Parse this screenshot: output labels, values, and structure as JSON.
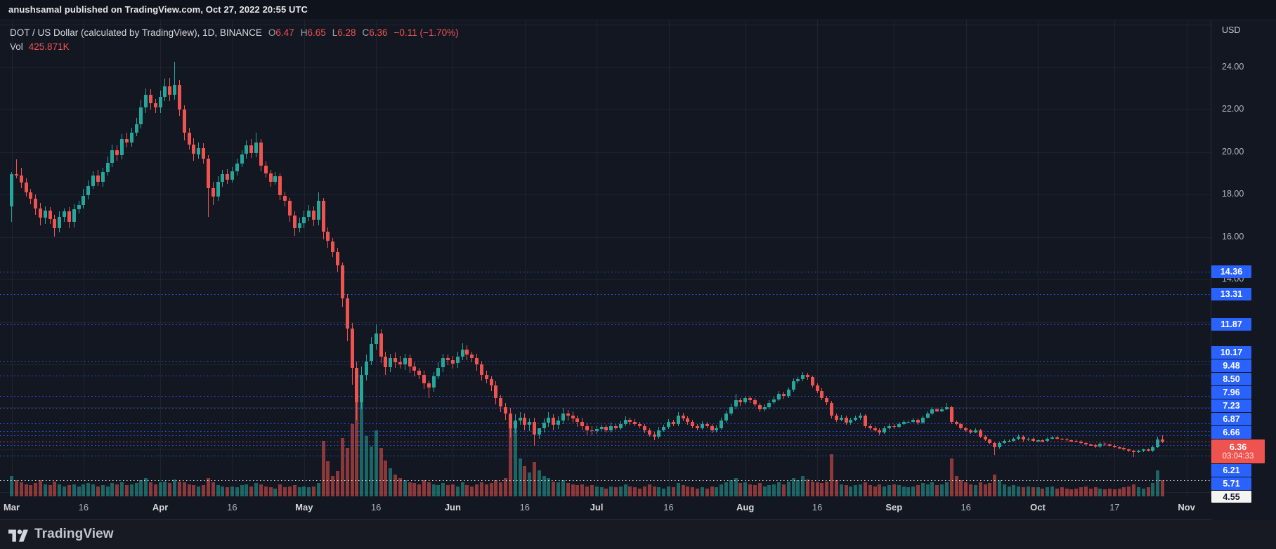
{
  "attribution": {
    "text": "anushsamal published on TradingView.com, Oct 27, 2022 20:55 UTC"
  },
  "legend": {
    "title": "DOT / US Dollar (calculated by TradingView), 1D, BINANCE",
    "ohlc": [
      {
        "label": "O",
        "value": "6.47"
      },
      {
        "label": "H",
        "value": "6.65"
      },
      {
        "label": "L",
        "value": "6.28"
      },
      {
        "label": "C",
        "value": "6.36"
      }
    ],
    "change": "−0.11 (−1.70%)",
    "vol_label": "Vol",
    "vol_value": "425.871K"
  },
  "price_axis": {
    "currency": "USD",
    "ticks": [
      {
        "price": 24,
        "label": "24.00"
      },
      {
        "price": 22,
        "label": "22.00"
      },
      {
        "price": 20,
        "label": "20.00"
      },
      {
        "price": 18,
        "label": "18.00"
      },
      {
        "price": 16,
        "label": "16.00"
      },
      {
        "price": 14,
        "label": "14.00"
      }
    ]
  },
  "footer": {
    "brand": "TradingView"
  },
  "colors": {
    "background": "#131722",
    "up": "#26a69a",
    "down": "#ef5350",
    "up_vol": "rgba(38,166,154,0.55)",
    "down_vol": "rgba(239,83,80,0.55)",
    "grid": "rgba(255,255,255,0.055)",
    "alert_line": "#2962ff",
    "last_price_line": "#ef5350",
    "eta_line": "#e8e8e8",
    "axis_text": "#b2b5be"
  },
  "chart_data": {
    "type": "candlestick",
    "symbol": "DOT / US Dollar",
    "exchange": "BINANCE",
    "interval": "1D",
    "start_date": "2022-03-01",
    "end_date": "2022-10-27",
    "price_range_visible": [
      4.0,
      26.0
    ],
    "last_close": 6.36,
    "open_first": 17.45,
    "closes": [
      18.95,
      18.9,
      18.55,
      18.1,
      17.8,
      17.35,
      16.9,
      17.25,
      16.85,
      16.4,
      16.95,
      17.2,
      16.7,
      17.3,
      17.5,
      17.95,
      18.4,
      18.9,
      18.6,
      19.05,
      19.5,
      20.1,
      19.85,
      20.6,
      20.45,
      20.9,
      21.3,
      22.1,
      22.7,
      22.3,
      22.1,
      22.6,
      23.1,
      22.7,
      23.15,
      22.0,
      20.9,
      20.35,
      19.9,
      20.2,
      19.7,
      18.3,
      17.9,
      18.6,
      18.95,
      18.7,
      19.1,
      19.45,
      19.9,
      20.3,
      19.95,
      20.45,
      19.35,
      19.0,
      18.6,
      18.85,
      17.95,
      17.7,
      17.0,
      16.4,
      16.65,
      16.95,
      17.25,
      16.8,
      17.7,
      16.25,
      15.8,
      15.3,
      14.65,
      13.1,
      11.7,
      9.85,
      8.2,
      9.5,
      10.15,
      10.95,
      11.45,
      10.35,
      9.85,
      10.3,
      10.1,
      10.0,
      10.3,
      9.9,
      9.7,
      9.5,
      9.1,
      8.9,
      9.45,
      9.85,
      10.3,
      10.2,
      10.05,
      10.35,
      10.7,
      10.45,
      10.3,
      10.0,
      9.5,
      9.3,
      9.0,
      8.4,
      8.0,
      7.7,
      7.0,
      7.35,
      7.5,
      7.15,
      7.3,
      6.7,
      7.0,
      7.25,
      7.5,
      7.15,
      7.35,
      7.7,
      7.6,
      7.45,
      7.3,
      7.1,
      6.9,
      6.85,
      6.95,
      7.05,
      6.9,
      7.1,
      7.0,
      7.2,
      7.4,
      7.3,
      7.2,
      7.1,
      6.9,
      6.7,
      6.6,
      6.9,
      7.05,
      7.3,
      7.2,
      7.6,
      7.45,
      7.3,
      7.1,
      7.0,
      7.2,
      7.1,
      6.9,
      7.0,
      7.35,
      7.7,
      8.0,
      8.3,
      8.2,
      8.4,
      8.3,
      8.1,
      7.9,
      8.0,
      8.2,
      8.35,
      8.6,
      8.5,
      8.8,
      9.2,
      9.3,
      9.5,
      9.4,
      9.0,
      8.75,
      8.4,
      8.2,
      7.6,
      7.4,
      7.5,
      7.25,
      7.4,
      7.5,
      7.6,
      7.1,
      7.0,
      6.9,
      6.8,
      7.0,
      7.1,
      7.05,
      7.2,
      7.3,
      7.3,
      7.4,
      7.25,
      7.5,
      7.7,
      7.9,
      7.8,
      7.9,
      8.0,
      7.3,
      7.2,
      7.0,
      6.9,
      6.8,
      6.9,
      6.6,
      6.45,
      6.3,
      6.1,
      6.3,
      6.4,
      6.4,
      6.5,
      6.6,
      6.45,
      6.5,
      6.4,
      6.42,
      6.4,
      6.5,
      6.58,
      6.5,
      6.48,
      6.42,
      6.4,
      6.38,
      6.3,
      6.22,
      6.2,
      6.12,
      6.28,
      6.22,
      6.18,
      6.1,
      6.08,
      6.0,
      5.92,
      5.88,
      5.92,
      6.0,
      5.95,
      6.1,
      6.47,
      6.36
    ],
    "highs": [
      19.05,
      19.65,
      19.25,
      18.75,
      18.25,
      18.0,
      17.6,
      17.45,
      17.4,
      17.05,
      17.2,
      17.35,
      17.4,
      17.55,
      17.7,
      18.25,
      18.65,
      19.1,
      19.15,
      19.25,
      19.8,
      20.35,
      20.3,
      20.85,
      20.9,
      21.15,
      21.6,
      22.45,
      23.0,
      22.95,
      22.5,
      22.9,
      23.45,
      23.5,
      24.25,
      23.4,
      22.2,
      21.15,
      20.65,
      20.45,
      20.4,
      19.85,
      18.6,
      18.85,
      19.15,
      19.2,
      19.3,
      19.7,
      20.1,
      20.55,
      20.6,
      20.9,
      20.6,
      19.55,
      19.15,
      19.05,
      19.0,
      18.15,
      17.85,
      17.2,
      16.9,
      17.25,
      17.5,
      17.45,
      18.1,
      17.85,
      16.45,
      15.95,
      15.5,
      14.8,
      13.3,
      11.95,
      10.15,
      9.9,
      10.45,
      11.3,
      11.87,
      11.65,
      10.6,
      10.5,
      10.55,
      10.4,
      10.5,
      10.45,
      10.1,
      9.85,
      9.7,
      9.25,
      9.65,
      10.1,
      10.5,
      10.45,
      10.4,
      10.6,
      11.0,
      10.9,
      10.6,
      10.5,
      10.15,
      9.7,
      9.45,
      9.2,
      8.55,
      8.2,
      7.95,
      7.65,
      7.75,
      7.7,
      7.45,
      7.5,
      6.95,
      7.45,
      7.75,
      7.65,
      7.55,
      7.95,
      7.85,
      7.8,
      7.6,
      7.5,
      7.25,
      7.1,
      7.1,
      7.17,
      7.15,
      7.25,
      7.2,
      7.32,
      7.55,
      7.5,
      7.42,
      7.3,
      7.18,
      7.0,
      6.82,
      7.05,
      7.15,
      7.42,
      7.4,
      7.75,
      7.72,
      7.55,
      7.38,
      7.2,
      7.32,
      7.3,
      7.18,
      7.12,
      7.5,
      7.82,
      8.15,
      8.6,
      8.42,
      8.52,
      8.5,
      8.42,
      8.2,
      8.12,
      8.3,
      8.47,
      8.75,
      8.7,
      8.92,
      9.35,
      9.42,
      9.63,
      9.6,
      9.48,
      9.1,
      8.87,
      8.5,
      8.28,
      7.7,
      7.62,
      7.6,
      7.48,
      7.6,
      7.72,
      7.65,
      7.18,
      7.1,
      6.98,
      7.1,
      7.22,
      7.18,
      7.3,
      7.38,
      7.36,
      7.48,
      7.46,
      7.6,
      7.78,
      8.0,
      7.96,
      7.98,
      8.2,
      8.05,
      7.36,
      7.25,
      7.06,
      6.95,
      6.98,
      6.95,
      6.66,
      6.5,
      6.36,
      6.38,
      6.46,
      6.45,
      6.56,
      6.68,
      6.65,
      6.56,
      6.55,
      6.48,
      6.47,
      6.56,
      6.63,
      6.64,
      6.54,
      6.53,
      6.46,
      6.45,
      6.42,
      6.35,
      6.26,
      6.25,
      6.34,
      6.32,
      6.27,
      6.22,
      6.15,
      6.12,
      6.05,
      5.96,
      5.98,
      6.05,
      6.04,
      6.18,
      6.6,
      6.65
    ],
    "lows": [
      16.7,
      18.75,
      18.3,
      17.9,
      17.55,
      17.05,
      16.55,
      16.6,
      16.6,
      16.0,
      16.2,
      16.7,
      16.4,
      16.45,
      17.1,
      17.35,
      17.75,
      18.25,
      18.4,
      18.35,
      18.9,
      19.3,
      19.6,
      19.65,
      20.2,
      20.25,
      20.75,
      21.1,
      21.85,
      22.0,
      21.85,
      21.85,
      22.4,
      22.4,
      22.45,
      21.7,
      20.55,
      20.1,
      19.6,
      19.7,
      19.45,
      16.95,
      17.5,
      17.7,
      18.35,
      18.5,
      18.55,
      18.9,
      19.3,
      19.7,
      19.7,
      19.75,
      19.1,
      18.8,
      18.35,
      18.45,
      17.75,
      17.45,
      16.7,
      16.05,
      16.2,
      16.4,
      16.75,
      16.5,
      16.55,
      15.9,
      15.5,
      15.05,
      14.35,
      12.7,
      11.1,
      9.05,
      7.4,
      7.9,
      9.25,
      9.95,
      10.7,
      10.05,
      9.5,
      9.65,
      9.85,
      9.8,
      9.75,
      9.6,
      9.45,
      9.3,
      8.85,
      8.4,
      8.7,
      9.3,
      9.65,
      9.95,
      9.8,
      9.85,
      10.2,
      10.2,
      10.1,
      9.7,
      9.25,
      9.1,
      8.75,
      8.1,
      7.75,
      7.4,
      6.55,
      6.75,
      7.15,
      6.9,
      6.85,
      6.16,
      6.5,
      6.8,
      7.05,
      6.9,
      6.95,
      7.2,
      7.35,
      7.25,
      7.05,
      6.9,
      6.65,
      6.65,
      6.73,
      6.85,
      6.78,
      6.8,
      6.88,
      6.9,
      7.08,
      7.15,
      7.1,
      6.98,
      6.75,
      6.58,
      6.42,
      6.5,
      6.82,
      6.95,
      7.08,
      7.1,
      7.33,
      7.15,
      6.98,
      6.9,
      6.92,
      6.98,
      6.75,
      6.8,
      6.92,
      7.25,
      7.58,
      7.9,
      8.05,
      8.1,
      8.18,
      8.0,
      7.75,
      7.8,
      7.92,
      8.1,
      8.27,
      8.38,
      8.42,
      8.7,
      9.12,
      9.2,
      9.28,
      8.9,
      8.63,
      8.3,
      8.08,
      7.45,
      7.28,
      7.32,
      7.15,
      7.17,
      7.32,
      7.4,
      6.98,
      6.9,
      6.82,
      6.66,
      6.72,
      6.92,
      6.95,
      6.99,
      7.12,
      7.24,
      7.25,
      7.17,
      7.19,
      7.45,
      7.62,
      7.74,
      7.75,
      7.84,
      7.18,
      7.12,
      6.94,
      6.82,
      6.74,
      6.75,
      6.52,
      6.39,
      6.22,
      5.72,
      6.04,
      6.25,
      6.34,
      6.35,
      6.44,
      6.37,
      6.4,
      6.34,
      6.35,
      6.34,
      6.36,
      6.45,
      6.46,
      6.43,
      6.38,
      6.35,
      6.34,
      6.24,
      6.17,
      6.16,
      6.06,
      6.08,
      6.17,
      6.14,
      6.05,
      6.04,
      5.94,
      5.87,
      5.65,
      5.83,
      5.88,
      5.89,
      5.88,
      6.05,
      6.28
    ],
    "volumes_rel": [
      0.2,
      0.16,
      0.14,
      0.12,
      0.11,
      0.13,
      0.16,
      0.12,
      0.11,
      0.15,
      0.12,
      0.1,
      0.11,
      0.12,
      0.1,
      0.12,
      0.13,
      0.12,
      0.1,
      0.11,
      0.1,
      0.13,
      0.12,
      0.14,
      0.11,
      0.12,
      0.13,
      0.16,
      0.18,
      0.14,
      0.12,
      0.14,
      0.15,
      0.13,
      0.17,
      0.15,
      0.14,
      0.12,
      0.11,
      0.1,
      0.11,
      0.18,
      0.14,
      0.11,
      0.1,
      0.09,
      0.1,
      0.09,
      0.11,
      0.12,
      0.1,
      0.13,
      0.12,
      0.1,
      0.09,
      0.08,
      0.12,
      0.09,
      0.1,
      0.11,
      0.09,
      0.1,
      0.09,
      0.1,
      0.13,
      0.55,
      0.35,
      0.2,
      0.25,
      0.58,
      0.48,
      0.72,
      1.0,
      0.95,
      0.6,
      0.5,
      0.66,
      0.48,
      0.36,
      0.28,
      0.22,
      0.18,
      0.16,
      0.14,
      0.13,
      0.12,
      0.16,
      0.14,
      0.12,
      0.11,
      0.13,
      0.11,
      0.12,
      0.1,
      0.14,
      0.11,
      0.1,
      0.12,
      0.14,
      0.12,
      0.13,
      0.16,
      0.14,
      0.18,
      0.72,
      0.68,
      0.38,
      0.3,
      0.24,
      0.34,
      0.26,
      0.2,
      0.18,
      0.15,
      0.14,
      0.16,
      0.13,
      0.12,
      0.11,
      0.12,
      0.1,
      0.11,
      0.1,
      0.09,
      0.08,
      0.1,
      0.09,
      0.1,
      0.12,
      0.1,
      0.09,
      0.08,
      0.1,
      0.12,
      0.1,
      0.09,
      0.08,
      0.1,
      0.09,
      0.13,
      0.11,
      0.1,
      0.09,
      0.08,
      0.09,
      0.08,
      0.1,
      0.09,
      0.12,
      0.14,
      0.16,
      0.18,
      0.13,
      0.14,
      0.12,
      0.11,
      0.13,
      0.1,
      0.11,
      0.12,
      0.14,
      0.12,
      0.15,
      0.18,
      0.16,
      0.2,
      0.17,
      0.15,
      0.14,
      0.13,
      0.15,
      0.42,
      0.16,
      0.12,
      0.11,
      0.1,
      0.11,
      0.12,
      0.14,
      0.11,
      0.1,
      0.12,
      0.1,
      0.11,
      0.12,
      0.11,
      0.1,
      0.09,
      0.1,
      0.11,
      0.13,
      0.12,
      0.14,
      0.11,
      0.12,
      0.14,
      0.38,
      0.2,
      0.16,
      0.14,
      0.12,
      0.11,
      0.14,
      0.12,
      0.13,
      0.22,
      0.16,
      0.12,
      0.1,
      0.11,
      0.1,
      0.09,
      0.1,
      0.09,
      0.09,
      0.08,
      0.09,
      0.1,
      0.08,
      0.09,
      0.08,
      0.07,
      0.08,
      0.09,
      0.1,
      0.08,
      0.09,
      0.08,
      0.07,
      0.08,
      0.07,
      0.08,
      0.09,
      0.1,
      0.12,
      0.09,
      0.08,
      0.09,
      0.13,
      0.26,
      0.16
    ],
    "price_lines": [
      {
        "price": 14.36,
        "label": "14.36",
        "type": "alert"
      },
      {
        "price": 13.31,
        "label": "13.31",
        "type": "alert"
      },
      {
        "price": 11.87,
        "label": "11.87",
        "type": "alert"
      },
      {
        "price": 10.17,
        "label": "10.17",
        "type": "alert"
      },
      {
        "price": 9.48,
        "label": "9.48",
        "type": "alert"
      },
      {
        "price": 8.5,
        "label": "8.50",
        "type": "alert"
      },
      {
        "price": 7.96,
        "label": "7.96",
        "type": "alert"
      },
      {
        "price": 7.23,
        "label": "7.23",
        "type": "alert"
      },
      {
        "price": 6.87,
        "label": "6.87",
        "type": "alert"
      },
      {
        "price": 6.66,
        "label": "6.66",
        "type": "alert"
      },
      {
        "price": 6.36,
        "label": "6.36",
        "type": "last",
        "countdown": "03:04:33"
      },
      {
        "price": 6.21,
        "label": "6.21",
        "type": "alert"
      },
      {
        "price": 5.71,
        "label": "5.71",
        "type": "alert"
      },
      {
        "price": 4.55,
        "label": "4.55",
        "type": "eta"
      }
    ],
    "time_labels": [
      {
        "label": "Mar",
        "day": 0,
        "major": true
      },
      {
        "label": "16",
        "day": 15,
        "major": false
      },
      {
        "label": "Apr",
        "day": 31,
        "major": true
      },
      {
        "label": "16",
        "day": 46,
        "major": false
      },
      {
        "label": "May",
        "day": 61,
        "major": true
      },
      {
        "label": "16",
        "day": 76,
        "major": false
      },
      {
        "label": "Jun",
        "day": 92,
        "major": true
      },
      {
        "label": "16",
        "day": 107,
        "major": false
      },
      {
        "label": "Jul",
        "day": 122,
        "major": true
      },
      {
        "label": "16",
        "day": 137,
        "major": false
      },
      {
        "label": "Aug",
        "day": 153,
        "major": true
      },
      {
        "label": "16",
        "day": 168,
        "major": false
      },
      {
        "label": "Sep",
        "day": 184,
        "major": true
      },
      {
        "label": "16",
        "day": 199,
        "major": false
      },
      {
        "label": "Oct",
        "day": 214,
        "major": true
      },
      {
        "label": "17",
        "day": 230,
        "major": false
      },
      {
        "label": "Nov",
        "day": 245,
        "major": true
      }
    ],
    "grid_price_step": 2,
    "legend_position": "top-left"
  }
}
